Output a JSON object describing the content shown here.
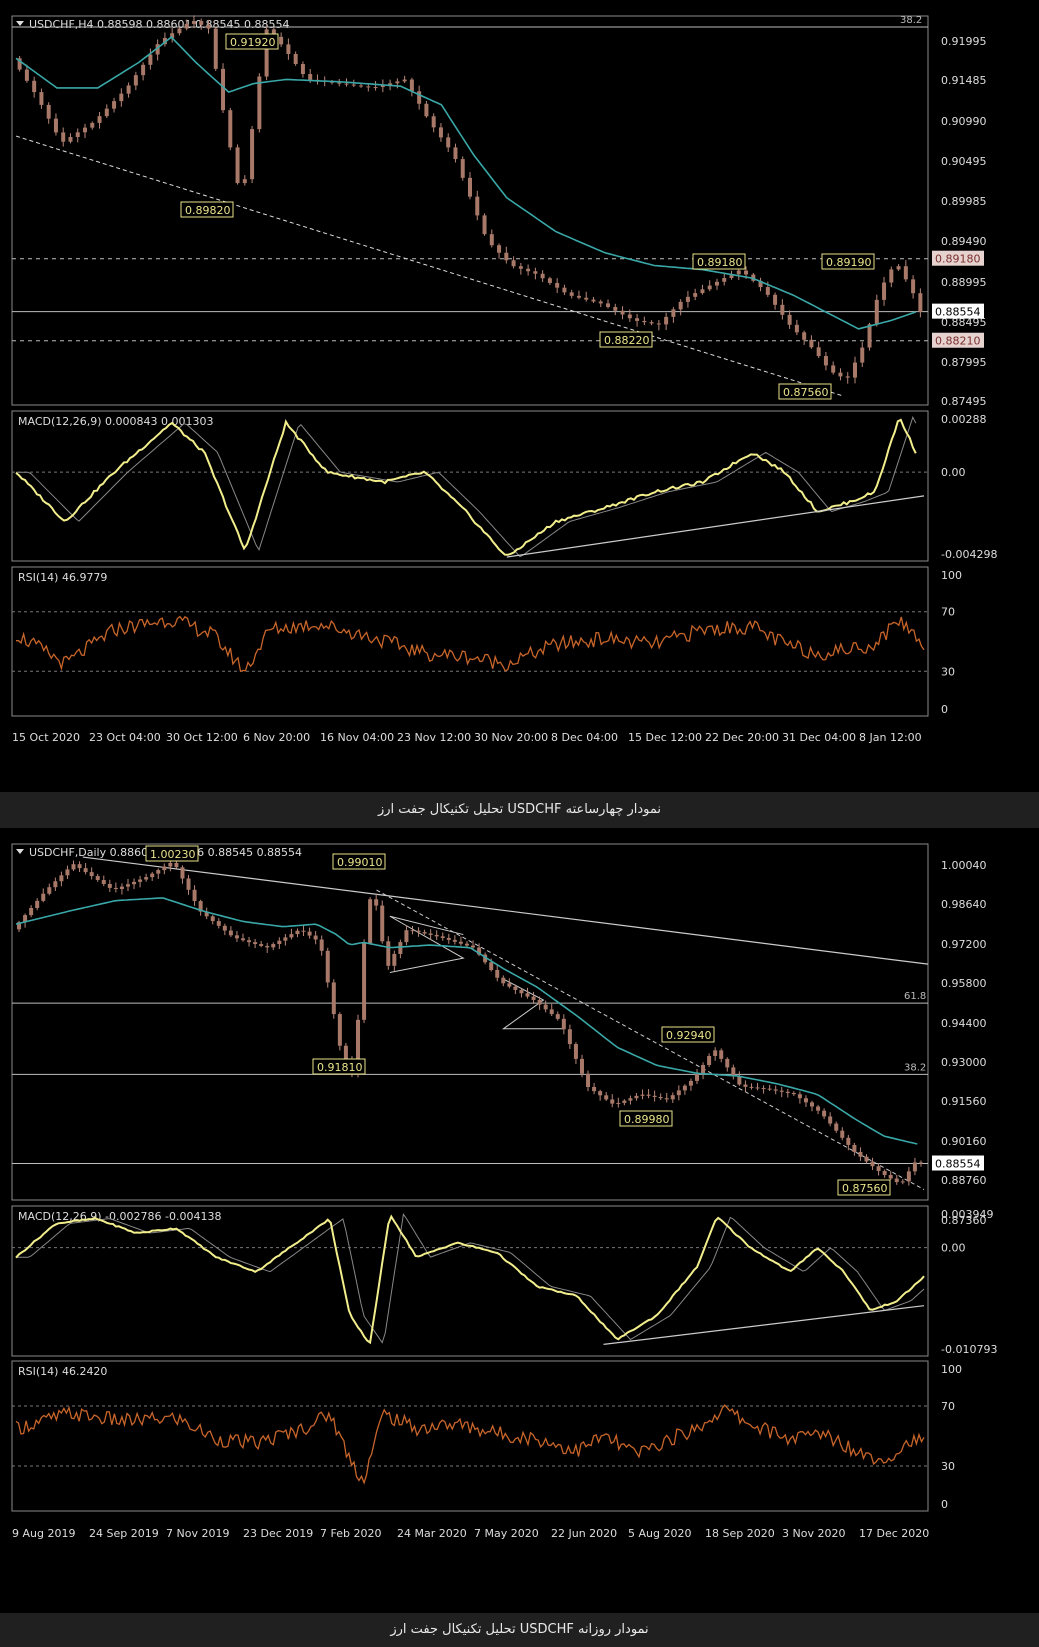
{
  "charts": [
    {
      "header": "USDCHF,H4  0.88598 0.88601 0.88545 0.88554",
      "macd_label": "MACD(12,26,9) 0.000843 0.001303",
      "rsi_label": "RSI(14) 46.9779",
      "price_ticks": [
        "0.91995",
        "0.91485",
        "0.90990",
        "0.90495",
        "0.89985",
        "0.89490",
        "0.88995",
        "0.88495",
        "0.87995",
        "0.87495"
      ],
      "macd_ticks": [
        "0.00288",
        "0.00",
        "-0.004298"
      ],
      "rsi_ticks": [
        "100",
        "70",
        "30",
        "0"
      ],
      "fib_label": "38.2",
      "date_labels": [
        "15 Oct 2020",
        "23 Oct 04:00",
        "30 Oct 12:00",
        "6 Nov 20:00",
        "16 Nov 04:00",
        "23 Nov 12:00",
        "30 Nov 20:00",
        "8 Dec 04:00",
        "15 Dec 12:00",
        "22 Dec 20:00",
        "31 Dec 04:00",
        "8 Jan 12:00"
      ],
      "annotations": [
        "0.91920",
        "0.89820",
        "0.89180",
        "0.89190",
        "0.88220",
        "0.87560"
      ],
      "right_markers": [
        "0.89180",
        "0.88554",
        "0.88210"
      ],
      "caption": "تحلیل تکنیکال جفت ارز USDCHF نمودار چهارساعته"
    },
    {
      "header": "USDCHF,Daily  0.88609 0.88666 0.88545 0.88554",
      "macd_label": "MACD(12,26,9) -0.002786 -0.004138",
      "rsi_label": "RSI(14) 46.2420",
      "price_ticks": [
        "1.00040",
        "0.98640",
        "0.97200",
        "0.95800",
        "0.94400",
        "0.93000",
        "0.91560",
        "0.90160",
        "0.88760",
        "0.87360"
      ],
      "macd_ticks": [
        "0.003949",
        "0.00",
        "-0.010793"
      ],
      "rsi_ticks": [
        "100",
        "70",
        "30",
        "0"
      ],
      "fib_labels": [
        "61.8",
        "38.2"
      ],
      "date_labels": [
        "9 Aug 2019",
        "24 Sep 2019",
        "7 Nov 2019",
        "23 Dec 2019",
        "7 Feb 2020",
        "24 Mar 2020",
        "7 May 2020",
        "22 Jun 2020",
        "5 Aug 2020",
        "18 Sep 2020",
        "3 Nov 2020",
        "17 Dec 2020"
      ],
      "annotations": [
        "1.00230",
        "0.99010",
        "0.91810",
        "0.92940",
        "0.89980",
        "0.87560"
      ],
      "right_markers": [
        "0.88554"
      ],
      "caption": "تحلیل تکنیکال جفت ارز USDCHF نمودار روزانه"
    }
  ],
  "chart_data": [
    {
      "type": "candlestick",
      "symbol": "USDCHF",
      "timeframe": "H4",
      "x": [
        "15 Oct 2020",
        "23 Oct 04:00",
        "30 Oct 12:00",
        "6 Nov 20:00",
        "16 Nov 04:00",
        "23 Nov 12:00",
        "30 Nov 20:00",
        "8 Dec 04:00",
        "15 Dec 12:00",
        "22 Dec 20:00",
        "31 Dec 04:00",
        "8 Jan 12:00"
      ],
      "ylim": [
        0.8745,
        0.9205
      ],
      "path": [
        [
          0,
          0.9155
        ],
        [
          3,
          0.911
        ],
        [
          6,
          0.9055
        ],
        [
          10,
          0.908
        ],
        [
          14,
          0.912
        ],
        [
          18,
          0.9175
        ],
        [
          22,
          0.92
        ],
        [
          24,
          0.919
        ],
        [
          26,
          0.908
        ],
        [
          28,
          0.8985
        ],
        [
          29,
          0.905
        ],
        [
          31,
          0.919
        ],
        [
          33,
          0.917
        ],
        [
          36,
          0.913
        ],
        [
          40,
          0.9125
        ],
        [
          44,
          0.912
        ],
        [
          48,
          0.913
        ],
        [
          51,
          0.908
        ],
        [
          54,
          0.904
        ],
        [
          56,
          0.899
        ],
        [
          58,
          0.894
        ],
        [
          61,
          0.891
        ],
        [
          64,
          0.89
        ],
        [
          68,
          0.8875
        ],
        [
          72,
          0.8865
        ],
        [
          76,
          0.8845
        ],
        [
          79,
          0.884
        ],
        [
          82,
          0.887
        ],
        [
          86,
          0.889
        ],
        [
          89,
          0.8905
        ],
        [
          92,
          0.888
        ],
        [
          95,
          0.884
        ],
        [
          98,
          0.881
        ],
        [
          100,
          0.8785
        ],
        [
          102,
          0.8775
        ],
        [
          104,
          0.8815
        ],
        [
          106,
          0.888
        ],
        [
          108,
          0.8915
        ],
        [
          110,
          0.888
        ],
        [
          111,
          0.8855
        ]
      ],
      "ma_path": [
        [
          0,
          0.9155
        ],
        [
          5,
          0.912
        ],
        [
          10,
          0.912
        ],
        [
          15,
          0.915
        ],
        [
          19,
          0.918
        ],
        [
          22,
          0.915
        ],
        [
          26,
          0.9115
        ],
        [
          29,
          0.9125
        ],
        [
          33,
          0.913
        ],
        [
          40,
          0.9127
        ],
        [
          47,
          0.9122
        ],
        [
          52,
          0.91
        ],
        [
          56,
          0.904
        ],
        [
          60,
          0.899
        ],
        [
          66,
          0.895
        ],
        [
          72,
          0.8925
        ],
        [
          78,
          0.891
        ],
        [
          84,
          0.8905
        ],
        [
          90,
          0.8895
        ],
        [
          95,
          0.8875
        ],
        [
          99,
          0.8855
        ],
        [
          103,
          0.8835
        ],
        [
          107,
          0.8845
        ],
        [
          110,
          0.8855
        ]
      ],
      "macd": [
        [
          0,
          0.0
        ],
        [
          6,
          -0.0025
        ],
        [
          12,
          0.0
        ],
        [
          19,
          0.0025
        ],
        [
          23,
          0.001
        ],
        [
          28,
          -0.004
        ],
        [
          33,
          0.0025
        ],
        [
          38,
          0.0
        ],
        [
          45,
          -0.0005
        ],
        [
          50,
          0.0
        ],
        [
          55,
          -0.002
        ],
        [
          60,
          -0.0043
        ],
        [
          66,
          -0.0025
        ],
        [
          72,
          -0.0018
        ],
        [
          78,
          -0.001
        ],
        [
          84,
          -0.0005
        ],
        [
          90,
          0.001
        ],
        [
          94,
          0.0
        ],
        [
          98,
          -0.002
        ],
        [
          102,
          -0.0015
        ],
        [
          105,
          -0.001
        ],
        [
          108,
          0.0028
        ],
        [
          110,
          0.001
        ]
      ],
      "rsi": [
        [
          0,
          55
        ],
        [
          6,
          35
        ],
        [
          12,
          58
        ],
        [
          19,
          65
        ],
        [
          24,
          55
        ],
        [
          28,
          30
        ],
        [
          31,
          58
        ],
        [
          37,
          62
        ],
        [
          44,
          52
        ],
        [
          50,
          42
        ],
        [
          55,
          40
        ],
        [
          60,
          35
        ],
        [
          66,
          48
        ],
        [
          72,
          52
        ],
        [
          78,
          48
        ],
        [
          84,
          58
        ],
        [
          90,
          60
        ],
        [
          94,
          48
        ],
        [
          98,
          42
        ],
        [
          102,
          45
        ],
        [
          105,
          48
        ],
        [
          108,
          65
        ],
        [
          111,
          48
        ]
      ],
      "horizontal_levels": [
        0.9192,
        0.8918,
        0.88554,
        0.8821
      ],
      "trendline": [
        [
          0,
          0.9063
        ],
        [
          101,
          0.8756
        ]
      ]
    },
    {
      "type": "candlestick",
      "symbol": "USDCHF",
      "timeframe": "Daily",
      "x": [
        "9 Aug 2019",
        "24 Sep 2019",
        "7 Nov 2019",
        "23 Dec 2019",
        "7 Feb 2020",
        "24 Mar 2020",
        "7 May 2020",
        "22 Jun 2020",
        "5 Aug 2020",
        "18 Sep 2020",
        "3 Nov 2020",
        "17 Dec 2020"
      ],
      "ylim": [
        0.8716,
        1.0076
      ],
      "path": [
        [
          0,
          0.975
        ],
        [
          5,
          0.99
        ],
        [
          9,
          1.0
        ],
        [
          15,
          0.99
        ],
        [
          20,
          0.995
        ],
        [
          24,
          1.001
        ],
        [
          28,
          0.982
        ],
        [
          33,
          0.972
        ],
        [
          38,
          0.968
        ],
        [
          43,
          0.975
        ],
        [
          46,
          0.97
        ],
        [
          49,
          0.93
        ],
        [
          51,
          0.9185
        ],
        [
          53,
          0.983
        ],
        [
          54,
          0.9901
        ],
        [
          56,
          0.96
        ],
        [
          59,
          0.975
        ],
        [
          64,
          0.972
        ],
        [
          69,
          0.968
        ],
        [
          73,
          0.955
        ],
        [
          78,
          0.948
        ],
        [
          82,
          0.94
        ],
        [
          86,
          0.915
        ],
        [
          90,
          0.908
        ],
        [
          94,
          0.912
        ],
        [
          98,
          0.91
        ],
        [
          102,
          0.918
        ],
        [
          105,
          0.9294
        ],
        [
          109,
          0.915
        ],
        [
          113,
          0.914
        ],
        [
          117,
          0.912
        ],
        [
          121,
          0.905
        ],
        [
          126,
          0.89
        ],
        [
          130,
          0.882
        ],
        [
          133,
          0.8775
        ],
        [
          135,
          0.886
        ],
        [
          136,
          0.8855
        ]
      ],
      "ma_path": [
        [
          0,
          0.977
        ],
        [
          8,
          0.982
        ],
        [
          15,
          0.986
        ],
        [
          22,
          0.987
        ],
        [
          28,
          0.982
        ],
        [
          34,
          0.978
        ],
        [
          40,
          0.976
        ],
        [
          45,
          0.977
        ],
        [
          48,
          0.973
        ],
        [
          50,
          0.969
        ],
        [
          52,
          0.97
        ],
        [
          56,
          0.968
        ],
        [
          62,
          0.969
        ],
        [
          68,
          0.968
        ],
        [
          73,
          0.96
        ],
        [
          78,
          0.953
        ],
        [
          84,
          0.942
        ],
        [
          90,
          0.93
        ],
        [
          96,
          0.923
        ],
        [
          102,
          0.92
        ],
        [
          108,
          0.919
        ],
        [
          114,
          0.916
        ],
        [
          120,
          0.912
        ],
        [
          126,
          0.902
        ],
        [
          130,
          0.896
        ],
        [
          135,
          0.893
        ]
      ],
      "macd": [
        [
          0,
          -0.001
        ],
        [
          6,
          0.0025
        ],
        [
          12,
          0.003
        ],
        [
          18,
          0.0015
        ],
        [
          24,
          0.002
        ],
        [
          30,
          -0.001
        ],
        [
          36,
          -0.0025
        ],
        [
          43,
          0.001
        ],
        [
          47,
          0.003
        ],
        [
          50,
          -0.007
        ],
        [
          53,
          -0.01
        ],
        [
          56,
          0.0035
        ],
        [
          60,
          -0.001
        ],
        [
          66,
          0.0005
        ],
        [
          72,
          -0.0005
        ],
        [
          78,
          -0.004
        ],
        [
          84,
          -0.005
        ],
        [
          90,
          -0.0095
        ],
        [
          96,
          -0.007
        ],
        [
          102,
          -0.002
        ],
        [
          105,
          0.0032
        ],
        [
          110,
          0.0
        ],
        [
          116,
          -0.0025
        ],
        [
          120,
          0.0
        ],
        [
          124,
          -0.0025
        ],
        [
          128,
          -0.0065
        ],
        [
          132,
          -0.0055
        ],
        [
          136,
          -0.003
        ]
      ],
      "rsi": [
        [
          0,
          55
        ],
        [
          8,
          65
        ],
        [
          16,
          60
        ],
        [
          24,
          62
        ],
        [
          30,
          48
        ],
        [
          36,
          45
        ],
        [
          43,
          55
        ],
        [
          47,
          65
        ],
        [
          50,
          35
        ],
        [
          52,
          20
        ],
        [
          55,
          65
        ],
        [
          60,
          55
        ],
        [
          66,
          58
        ],
        [
          72,
          52
        ],
        [
          78,
          48
        ],
        [
          84,
          40
        ],
        [
          88,
          50
        ],
        [
          93,
          38
        ],
        [
          98,
          48
        ],
        [
          102,
          55
        ],
        [
          106,
          68
        ],
        [
          110,
          58
        ],
        [
          116,
          48
        ],
        [
          121,
          52
        ],
        [
          125,
          42
        ],
        [
          129,
          35
        ],
        [
          132,
          38
        ],
        [
          134,
          48
        ],
        [
          136,
          45
        ]
      ],
      "horizontal_levels": [
        0.9468,
        0.9196,
        0.88554
      ],
      "resistance_line": [
        [
          10,
          1.0026
        ],
        [
          136,
          0.9617
        ]
      ]
    }
  ]
}
